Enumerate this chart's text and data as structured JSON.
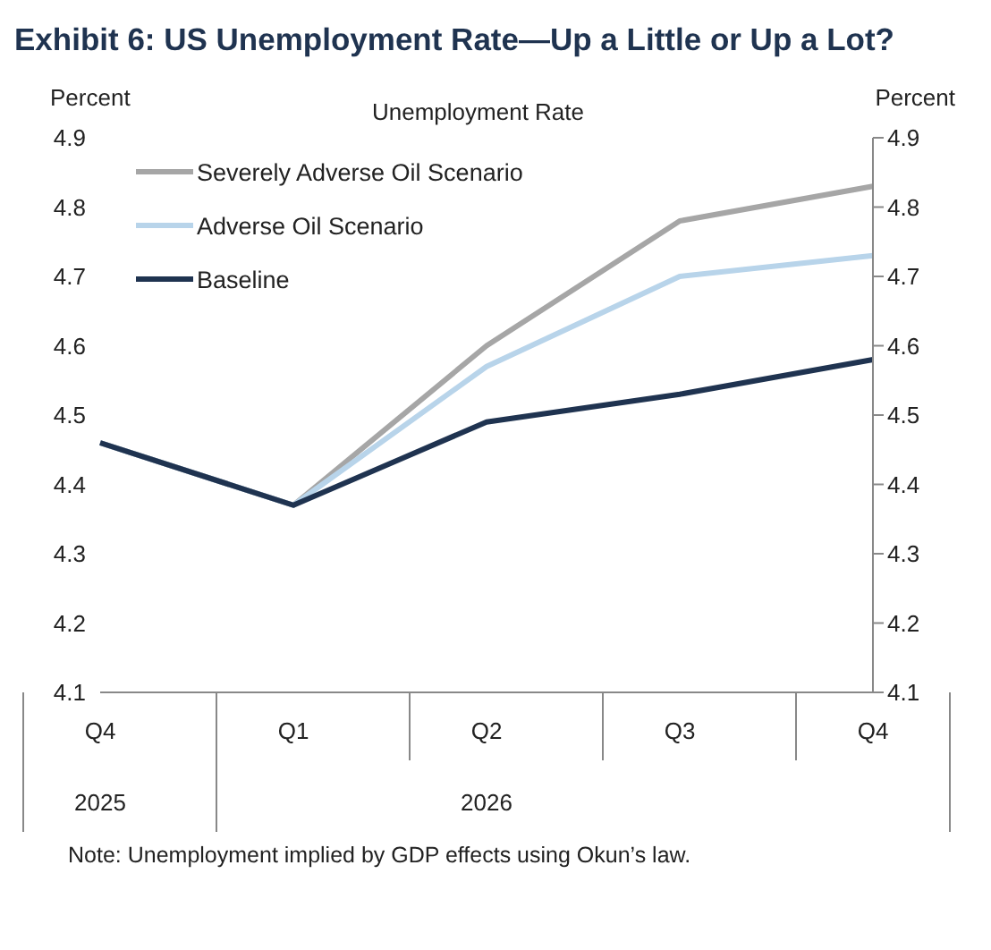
{
  "chart_data": {
    "type": "line",
    "title": "Exhibit 6: US Unemployment Rate—Up a Little or Up a Lot?",
    "subtitle": "Unemployment Rate",
    "ylabel": "Percent",
    "y2label": "Percent",
    "categories": [
      "Q4",
      "Q1",
      "Q2",
      "Q3",
      "Q4"
    ],
    "series": [
      {
        "name": "Severely Adverse Oil Scenario",
        "color": "#a6a6a6",
        "values": [
          4.46,
          4.37,
          4.6,
          4.78,
          4.83
        ]
      },
      {
        "name": "Adverse Oil Scenario",
        "color": "#b8d4ea",
        "values": [
          4.46,
          4.37,
          4.57,
          4.7,
          4.73
        ]
      },
      {
        "name": "Baseline",
        "color": "#1f3350",
        "values": [
          4.46,
          4.37,
          4.49,
          4.53,
          4.58
        ]
      }
    ],
    "ylim": [
      4.1,
      4.9
    ],
    "yticks": [
      4.1,
      4.2,
      4.3,
      4.4,
      4.5,
      4.6,
      4.7,
      4.8,
      4.9
    ],
    "y2lim": [
      4.1,
      4.9
    ],
    "y2ticks": [
      4.1,
      4.2,
      4.3,
      4.4,
      4.5,
      4.6,
      4.7,
      4.8,
      4.9
    ],
    "grid": false,
    "legend": "top left",
    "marker": "none",
    "line_style": "solid",
    "annotations": [
      "2025",
      "2026",
      "Note: Unemployment implied by GDP effects using Okun’s law."
    ]
  }
}
